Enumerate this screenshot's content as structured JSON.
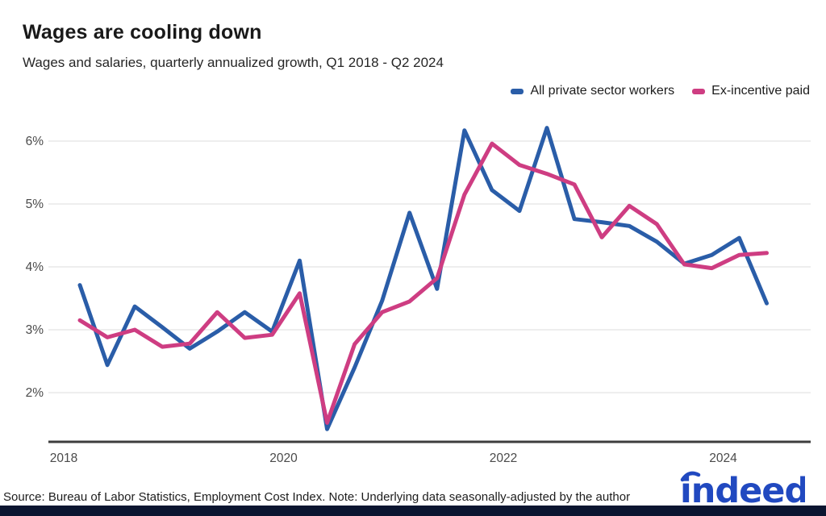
{
  "header": {
    "title": "Wages are cooling down",
    "subtitle": "Wages and salaries, quarterly annualized growth, Q1 2018 - Q2 2024"
  },
  "chart_data": {
    "type": "line",
    "title": "Wages are cooling down",
    "xlabel": "",
    "ylabel": "",
    "x": [
      "Q1 2018",
      "Q2 2018",
      "Q3 2018",
      "Q4 2018",
      "Q1 2019",
      "Q2 2019",
      "Q3 2019",
      "Q4 2019",
      "Q1 2020",
      "Q2 2020",
      "Q3 2020",
      "Q4 2020",
      "Q1 2021",
      "Q2 2021",
      "Q3 2021",
      "Q4 2021",
      "Q1 2022",
      "Q2 2022",
      "Q3 2022",
      "Q4 2022",
      "Q1 2023",
      "Q2 2023",
      "Q3 2023",
      "Q4 2023",
      "Q1 2024",
      "Q2 2024"
    ],
    "series": [
      {
        "name": "All private sector workers",
        "color": "#2a5da8",
        "values": [
          3.71,
          2.44,
          3.37,
          3.04,
          2.7,
          2.97,
          3.28,
          2.97,
          4.1,
          1.42,
          2.4,
          3.46,
          4.86,
          3.65,
          6.17,
          5.22,
          4.89,
          6.21,
          4.76,
          4.71,
          4.65,
          4.4,
          4.05,
          4.19,
          4.46,
          3.42
        ]
      },
      {
        "name": "Ex-incentive paid",
        "color": "#ce3d82",
        "values": [
          3.15,
          2.88,
          3.0,
          2.73,
          2.78,
          3.28,
          2.87,
          2.92,
          3.58,
          1.52,
          2.77,
          3.28,
          3.45,
          3.82,
          5.15,
          5.96,
          5.62,
          5.48,
          5.31,
          4.47,
          4.97,
          4.68,
          4.04,
          3.98,
          4.19,
          4.22
        ]
      }
    ],
    "y_axis_ticks": [
      "2%",
      "3%",
      "4%",
      "5%",
      "6%"
    ],
    "y_axis_tick_values": [
      2,
      3,
      4,
      5,
      6
    ],
    "x_axis_ticks": [
      "2018",
      "2020",
      "2022",
      "2024"
    ],
    "ylim": [
      1.3,
      6.5
    ],
    "grid": "horizontal",
    "legend_position": "top-right"
  },
  "footer": {
    "source_note": "Source: Bureau of Labor Statistics, Employment Cost Index. Note: Underlying data seasonally-adjusted by the author",
    "logo_text": "indeed",
    "logo_color": "#2149c0",
    "bar_color": "#0b1530"
  }
}
